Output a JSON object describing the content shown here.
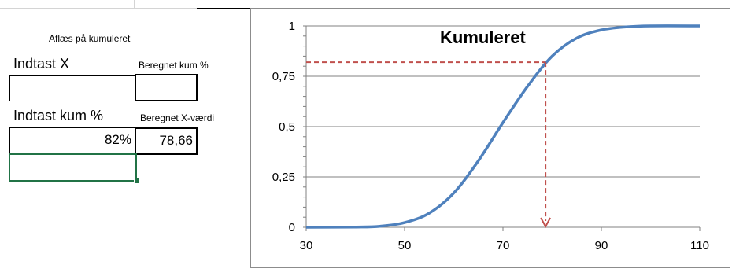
{
  "sheet": {
    "instruction": "Aflæs på kumuleret",
    "label_x": "Indtast X",
    "label_calc_cum": "Beregnet kum %",
    "input_x_value": "",
    "calc_cum_value": "",
    "label_cum": "Indtast kum %",
    "label_calc_x": "Beregnet X-værdi",
    "input_cum_value": "82%",
    "calc_x_value": "78,66"
  },
  "colors": {
    "curve": "#4f81bd",
    "marker": "#c0504d",
    "grid": "#808080",
    "selection": "#217346"
  },
  "chart_data": {
    "type": "line",
    "title": "Kumuleret",
    "xlim": [
      30,
      110
    ],
    "ylim": [
      0,
      1
    ],
    "x_ticks": [
      "30",
      "50",
      "70",
      "90",
      "110"
    ],
    "y_ticks": [
      "0",
      "0,25",
      "0,5",
      "0,75",
      "1"
    ],
    "grid": "horizontal",
    "series": [
      {
        "x": [
          30,
          40,
          45,
          50,
          55,
          60,
          65,
          70,
          75,
          80,
          85,
          90,
          95,
          100,
          110
        ],
        "y": [
          0.0,
          0.001,
          0.005,
          0.023,
          0.07,
          0.17,
          0.33,
          0.52,
          0.7,
          0.85,
          0.94,
          0.98,
          0.995,
          1.0,
          1.0
        ]
      }
    ],
    "reading": {
      "x": 78.66,
      "y": 0.82
    }
  }
}
